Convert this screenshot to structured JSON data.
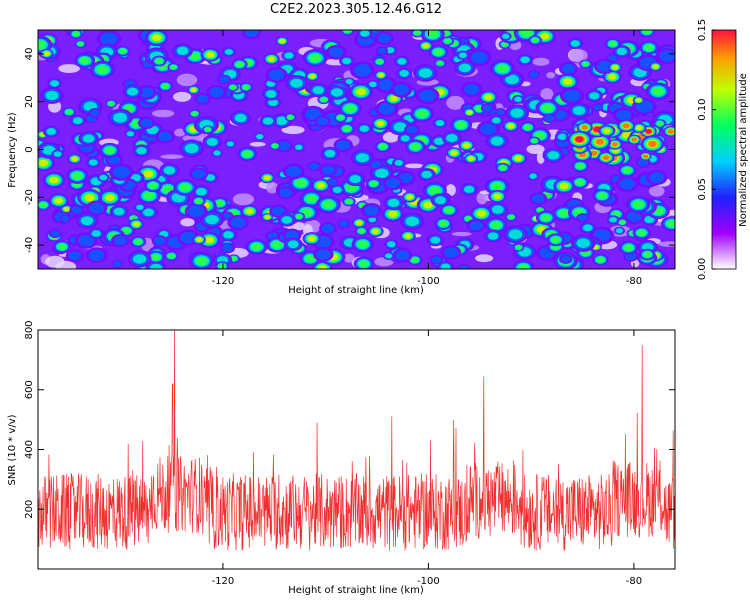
{
  "title": "C2E2.2023.305.12.46.G12",
  "chart_data": [
    {
      "type": "heatmap",
      "xlabel": "Height of straight line (km)",
      "ylabel": "Frequency (Hz)",
      "xlim": [
        -138,
        -76
      ],
      "ylim": [
        -50,
        50
      ],
      "xticks": [
        -120,
        -100,
        -80
      ],
      "yticks": [
        -40,
        -20,
        0,
        20,
        40
      ],
      "colorbar": {
        "label": "Normalized spectral amplitude",
        "range": [
          0.0,
          0.15
        ],
        "ticks": [
          "0.00",
          "0.05",
          "0.10",
          "0.15"
        ]
      },
      "description_values": "dense field of spectral blobs mostly 0.02–0.08, strongest patches ~0.12–0.15 near -78 km, 0 to 8 Hz"
    },
    {
      "type": "line",
      "xlabel": "Height of straight line (km)",
      "ylabel": "SNR (10 * v/v)",
      "xlim": [
        -138,
        -76
      ],
      "ylim": [
        0,
        800
      ],
      "xticks": [
        -120,
        -100,
        -80
      ],
      "yticks": [
        200,
        400,
        600,
        800
      ],
      "color": "#f03030",
      "peaks": [
        {
          "x": -124.7,
          "y": 800
        },
        {
          "x": -79.2,
          "y": 750
        },
        {
          "x": -94.6,
          "y": 645
        },
        {
          "x": -124.9,
          "y": 620
        }
      ]
    }
  ]
}
